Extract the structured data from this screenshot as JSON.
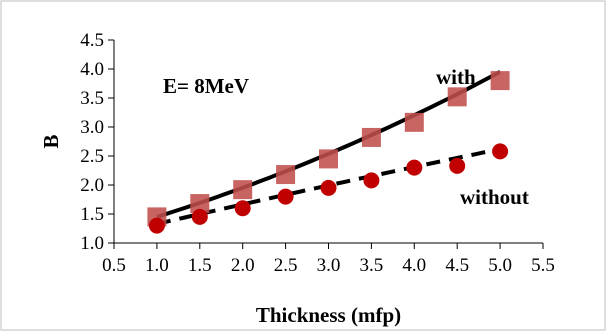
{
  "chart_data": {
    "type": "scatter",
    "xlabel": "Thickness (mfp)",
    "ylabel": "B",
    "xlim": [
      0.5,
      5.5
    ],
    "ylim": [
      1.0,
      4.5
    ],
    "x_ticks": [
      "0.5",
      "1.0",
      "1.5",
      "2.0",
      "2.5",
      "3.0",
      "3.5",
      "4.0",
      "4.5",
      "5.0",
      "5.5"
    ],
    "y_ticks": [
      "1.0",
      "1.5",
      "2.0",
      "2.5",
      "3.0",
      "3.5",
      "4.0",
      "4.5"
    ],
    "grid": false,
    "annotations": {
      "energy": "E= 8MeV",
      "with": "with",
      "without": "without"
    },
    "series": [
      {
        "label": "with",
        "marker": "square",
        "color": "#c0504d",
        "x": [
          1.0,
          1.5,
          2.0,
          2.5,
          3.0,
          3.5,
          4.0,
          4.5,
          5.0
        ],
        "y": [
          1.45,
          1.68,
          1.92,
          2.18,
          2.45,
          2.82,
          3.08,
          3.52,
          3.8
        ],
        "trend": {
          "style": "solid",
          "color": "#000000",
          "x": [
            1.0,
            5.0
          ],
          "y": [
            1.45,
            3.95
          ]
        }
      },
      {
        "label": "without",
        "marker": "circle",
        "color": "#c00000",
        "x": [
          1.0,
          1.5,
          2.0,
          2.5,
          3.0,
          3.5,
          4.0,
          4.5,
          5.0
        ],
        "y": [
          1.3,
          1.45,
          1.6,
          1.8,
          1.95,
          2.08,
          2.3,
          2.33,
          2.58
        ],
        "trend": {
          "style": "dashed",
          "color": "#000000",
          "x": [
            1.0,
            5.0
          ],
          "y": [
            1.33,
            2.62
          ]
        }
      }
    ]
  }
}
